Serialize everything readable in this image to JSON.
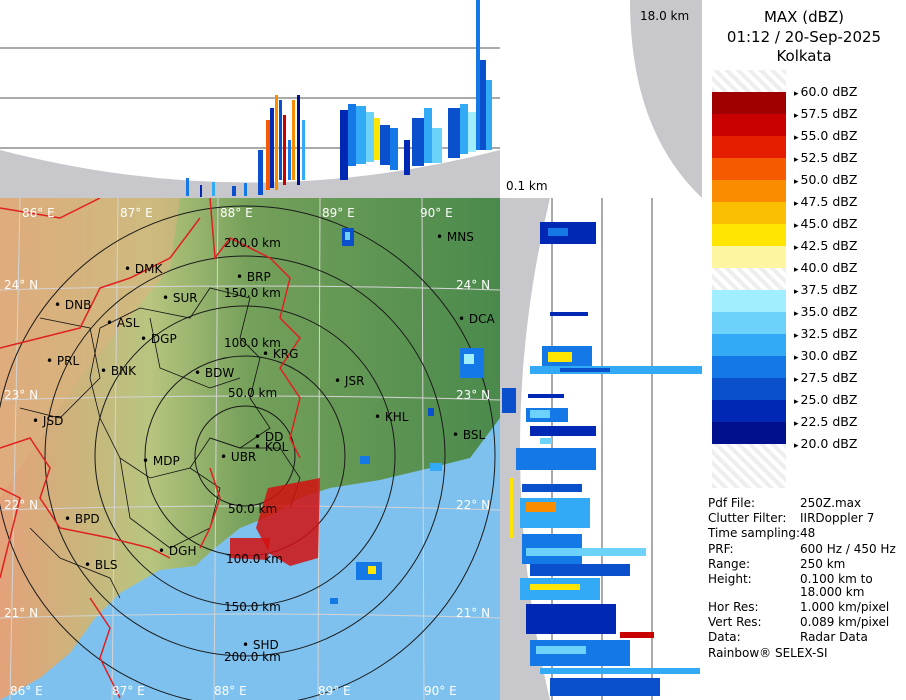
{
  "title": {
    "product": "MAX (dBZ)",
    "datetime": "01:12 / 20-Sep-2025",
    "station": "Kolkata"
  },
  "top_scale": {
    "top": "18.0 km",
    "bottom": "0.1 km"
  },
  "legend": {
    "levels": [
      "60.0 dBZ",
      "57.5 dBZ",
      "55.0 dBZ",
      "52.5 dBZ",
      "50.0 dBZ",
      "47.5 dBZ",
      "45.0 dBZ",
      "42.5 dBZ",
      "40.0 dBZ",
      "37.5 dBZ",
      "35.0 dBZ",
      "32.5 dBZ",
      "30.0 dBZ",
      "27.5 dBZ",
      "25.0 dBZ",
      "22.5 dBZ",
      "20.0 dBZ"
    ],
    "colors": [
      "#ffffff",
      "#a00000",
      "#c80000",
      "#e61e00",
      "#f55a00",
      "#fa8c00",
      "#fcbe00",
      "#ffe600",
      "#fdf5a0",
      "#ffffff",
      "#a0eeff",
      "#6cd2fa",
      "#32aaf5",
      "#1478e6",
      "#0a50cd",
      "#0028b4",
      "#00108c"
    ]
  },
  "info": [
    {
      "key": "Pdf File:",
      "value": "250Z.max"
    },
    {
      "key": "Clutter Filter:",
      "value": "IIRDoppler 7"
    },
    {
      "key": "Time sampling:",
      "value": "48"
    },
    {
      "key": "PRF:",
      "value": "600 Hz / 450 Hz"
    },
    {
      "key": "Range:",
      "value": "250 km"
    },
    {
      "key": "Height:",
      "value": "0.100 km to"
    },
    {
      "key": "",
      "value": "18.000 km"
    },
    {
      "key": "Hor Res:",
      "value": "1.000 km/pixel"
    },
    {
      "key": "Vert Res:",
      "value": "0.089 km/pixel"
    },
    {
      "key": "Data:",
      "value": "Radar Data"
    }
  ],
  "footer": "Rainbow® SELEX-SI",
  "map": {
    "lon_labels": [
      "86° E",
      "87° E",
      "88° E",
      "89° E",
      "90° E"
    ],
    "lat_labels": [
      "24° N",
      "23° N",
      "22° N",
      "21° N"
    ],
    "range_rings": [
      "200.0 km",
      "150.0 km",
      "100.0 km",
      "50.0 km",
      "50.0 km",
      "100.0 km",
      "150.0 km",
      "200.0 km"
    ],
    "stations": [
      "DMK",
      "BRP",
      "MNS",
      "DNB",
      "SUR",
      "ASL",
      "DGP",
      "DCA",
      "PRL",
      "BNK",
      "KRG",
      "BDW",
      "JSR",
      "JSD",
      "KHL",
      "DD",
      "KOL",
      "BSL",
      "MDP",
      "UBR",
      "BPD",
      "DGH",
      "BLS",
      "SHD"
    ]
  }
}
